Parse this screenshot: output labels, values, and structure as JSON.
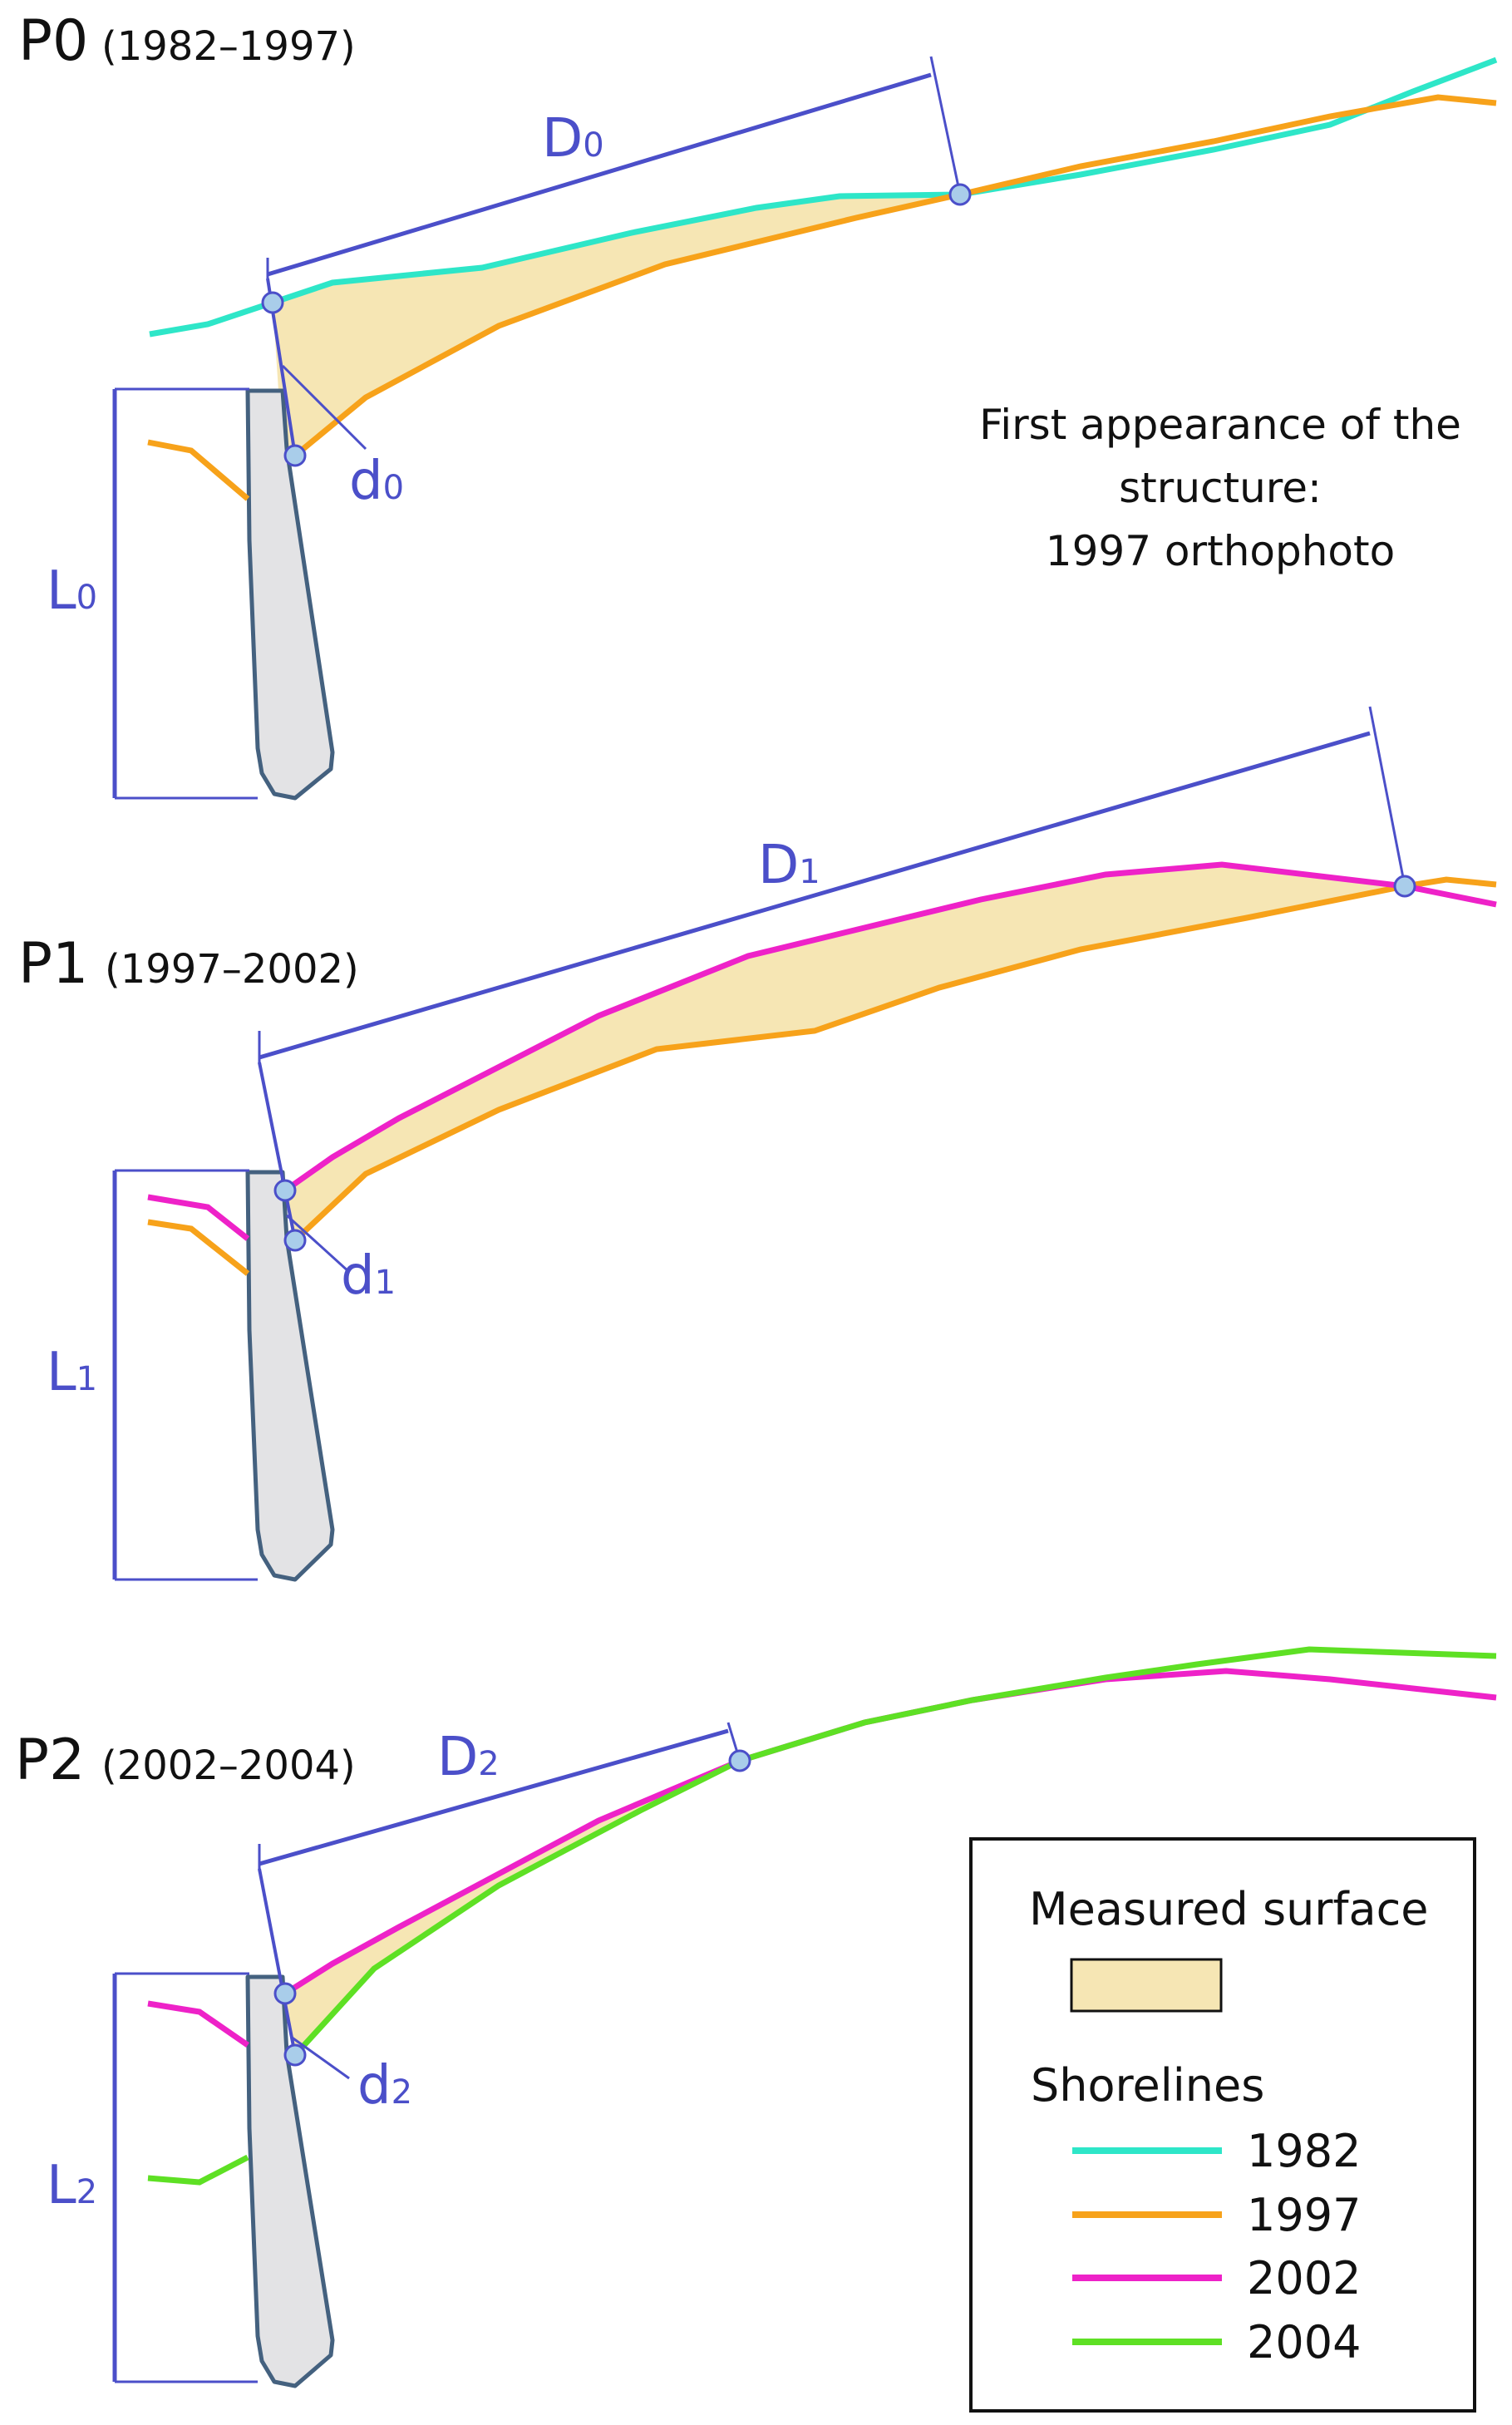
{
  "colors": {
    "dimension": "#4b4fc9",
    "measured_fill": "#f6e6b4",
    "structure_fill": "#e3e3e5",
    "structure_stroke": "#44617f",
    "point_fill": "#a9cdea",
    "shore_1982": "#2ee6c8",
    "shore_1997": "#f7a21a",
    "shore_2002": "#ee22c8",
    "shore_2004": "#5ee024"
  },
  "panels": [
    {
      "id": "P0",
      "name": "P0",
      "period": "(1982–1997)",
      "D_main": "D",
      "D_sub": "0",
      "d_main": "d",
      "d_sub": "0",
      "L_main": "L",
      "L_sub": "0",
      "older": "1982",
      "newer": "1997"
    },
    {
      "id": "P1",
      "name": "P1",
      "period": "(1997–2002)",
      "D_main": "D",
      "D_sub": "1",
      "d_main": "d",
      "d_sub": "1",
      "L_main": "L",
      "L_sub": "1",
      "older": "1997",
      "newer": "2002"
    },
    {
      "id": "P2",
      "name": "P2",
      "period": "(2002–2004)",
      "D_main": "D",
      "D_sub": "2",
      "d_main": "d",
      "d_sub": "2",
      "L_main": "L",
      "L_sub": "2",
      "older": "2002",
      "newer": "2004"
    }
  ],
  "note": {
    "line1": "First appearance of the",
    "line2": "structure:",
    "line3": "1997 orthophoto"
  },
  "legend": {
    "measured_label": "Measured surface",
    "shorelines_label": "Shorelines",
    "years": [
      {
        "year": "1982",
        "color_key": "shore_1982"
      },
      {
        "year": "1997",
        "color_key": "shore_1997"
      },
      {
        "year": "2002",
        "color_key": "shore_2002"
      },
      {
        "year": "2004",
        "color_key": "shore_2004"
      }
    ]
  }
}
